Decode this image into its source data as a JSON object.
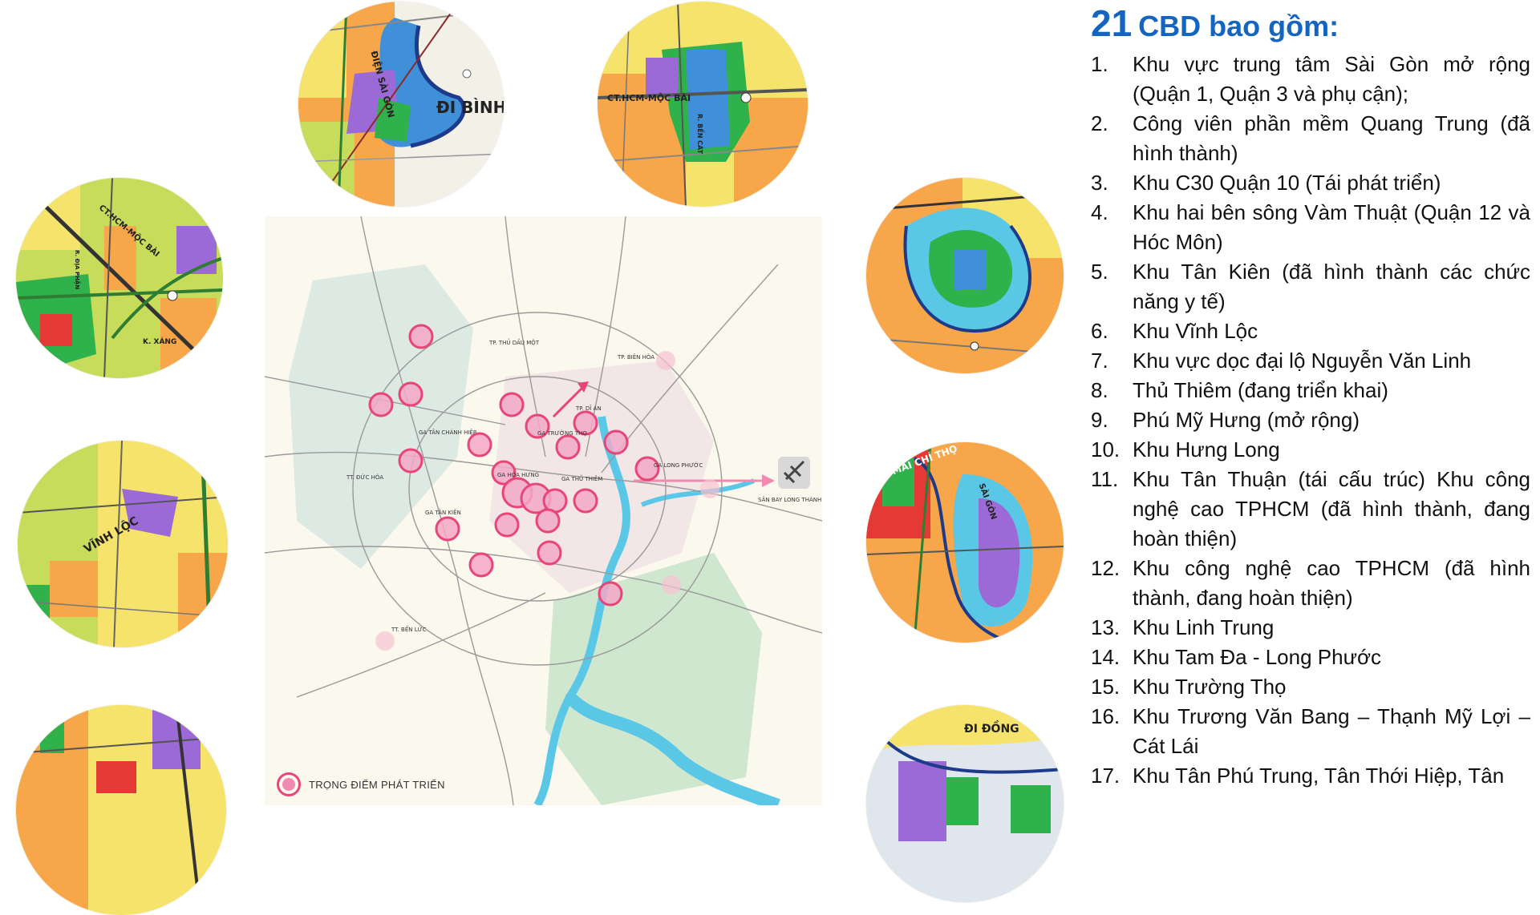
{
  "panel": {
    "title_number": "21",
    "title_text": "CBD bao gồm:",
    "items": [
      {
        "no": "1.",
        "text": "Khu vực trung tâm Sài Gòn mở rộng (Quận 1, Quận 3 và phụ cận);"
      },
      {
        "no": "2.",
        "text": "Công viên phần mềm Quang Trung (đã hình thành)"
      },
      {
        "no": "3.",
        "text": "Khu C30 Quận 10 (Tái phát triển)"
      },
      {
        "no": "4.",
        "text": "Khu hai bên sông Vàm Thuật (Quận 12 và Hóc Môn)"
      },
      {
        "no": "5.",
        "text": "Khu Tân Kiên (đã hình thành các chức năng y tế)"
      },
      {
        "no": "6.",
        "text": "Khu Vĩnh Lộc"
      },
      {
        "no": "7.",
        "text": "Khu vực dọc đại lộ Nguyễn Văn Linh"
      },
      {
        "no": "8.",
        "text": "Thủ Thiêm (đang triển khai)"
      },
      {
        "no": "9.",
        "text": "Phú Mỹ Hưng (mở rộng)"
      },
      {
        "no": "10.",
        "text": "Khu Hưng Long"
      },
      {
        "no": "11.",
        "text": "Khu Tân Thuận (tái cấu trúc) Khu công nghệ cao TPHCM (đã hình thành, đang hoàn thiện)"
      },
      {
        "no": "12.",
        "text": "Khu công nghệ cao TPHCM (đã hình thành, đang hoàn thiện)"
      },
      {
        "no": "13.",
        "text": "Khu Linh Trung"
      },
      {
        "no": "14.",
        "text": "Khu Tam Đa - Long Phước"
      },
      {
        "no": "15.",
        "text": "Khu Trường Thọ"
      },
      {
        "no": "16.",
        "text": "Khu Trương Văn Bang – Thạnh Mỹ Lợi – Cát Lái"
      },
      {
        "no": "17.",
        "text": "Khu Tân Phú Trung, Tân Thới Hiệp, Tân"
      }
    ]
  },
  "legend": {
    "label": "TRỌNG ĐIỂM PHÁT TRIỂN"
  },
  "circle_labels": {
    "top_left": {
      "dien_sai_gon": "ĐIỆN SÀI GÒN",
      "di_binh": "ĐI BÌNH"
    },
    "top_right": {
      "ct_moc_bai": "CT.HCM-MỘC BÀI",
      "r_ben_cat": "R. BẾN CÁT"
    },
    "left_upper": {
      "ct_moc_bai": "CT.HCM-MỘC BÀI",
      "k_xang": "K. XÁNG",
      "r_dia_phan": "R. ĐỊA PHẬN"
    },
    "left_middle": {
      "vinh_loc": "VĨNH LỘC"
    },
    "right_middle": {
      "mai_chi_tho": "MAI CHÍ THỌ",
      "sai_gon": "SÀI GÒN"
    },
    "right_bottom": {
      "di_dong": "ĐI ĐỒNG"
    }
  },
  "map_labels": {
    "tp_thu_dau_mot": "TP. THỦ DẦU MỘT",
    "tp_bien_hoa": "TP. BIÊN HÒA",
    "tp_di_an": "TP. DĨ AN",
    "ga_tan_chanh_hiep": "GA TÂN CHÁNH HIỆP",
    "ga_truong_tho": "GA TRƯỜNG THỌ",
    "ga_hoa_hung": "GA HÒA HƯNG",
    "ga_thu_thiem": "GA THỦ THIÊM",
    "ga_long_phuoc": "GA LONG PHƯỚC",
    "ga_tan_kien": "GA TÂN KIÊN",
    "tx_duc_hoa": "TT. ĐỨC HÒA",
    "tx_ben_luc": "TT. BẾN LỨC",
    "san_bay_long_thanh": "SÂN BAY LONG THÀNH"
  },
  "colors": {
    "title_blue": "#1565c0",
    "hotspot_pink": "#e8457a",
    "river_blue": "#5bc7e6",
    "land_orange": "#f7a64a",
    "land_yellow": "#f5e36b",
    "green": "#2fb24b",
    "purple": "#9b6ad6"
  },
  "icons": [
    "airplane-icon",
    "hotspot-marker-icon"
  ]
}
